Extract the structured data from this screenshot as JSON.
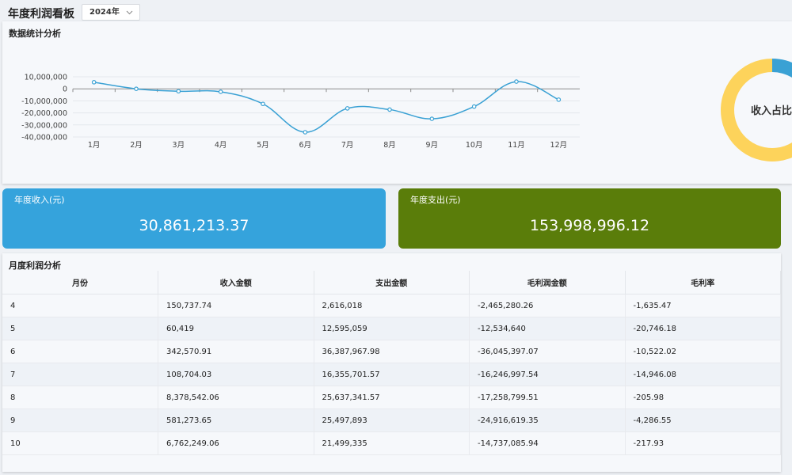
{
  "header": {
    "title": "年度利润看板",
    "year_select": "2024年"
  },
  "stats_panel": {
    "title": "数据统计分析",
    "donut_label": "收入占比"
  },
  "chart_data": {
    "type": "line",
    "categories": [
      "1月",
      "2月",
      "3月",
      "4月",
      "5月",
      "6月",
      "7月",
      "8月",
      "9月",
      "10月",
      "11月",
      "12月"
    ],
    "values": [
      5500000,
      0,
      -2000000,
      -2465280.26,
      -12534640,
      -36045397.07,
      -16246997.54,
      -17258799.51,
      -24916619.35,
      -14737085.94,
      6000000,
      -9000000
    ],
    "color": "#3aa1d4",
    "ylim": [
      -40000000,
      10000000
    ],
    "yticks": [
      {
        "value": 10000000,
        "label": "10,000,000"
      },
      0,
      {
        "value": -10000000,
        "label": "-10,000,000"
      },
      {
        "value": -20000000,
        "label": "-20,000,000"
      },
      {
        "value": -30000000,
        "label": "-30,000,000"
      },
      {
        "value": -40000000,
        "label": "-40,000,000"
      }
    ],
    "grid": true
  },
  "donut": {
    "values": [
      17,
      83
    ],
    "colors": [
      "#3aa1d4",
      "#fdd35b"
    ]
  },
  "cards": [
    {
      "title": "年度收入(元)",
      "value": "30,861,213.37",
      "color": "#35a3dc"
    },
    {
      "title": "年度支出(元)",
      "value": "153,998,996.12",
      "color": "#5a7d0a"
    }
  ],
  "table": {
    "title": "月度利润分析",
    "columns": [
      "月份",
      "收入金额",
      "支出金额",
      "毛利润金额",
      "毛利率"
    ],
    "rows": [
      [
        "4",
        "150,737.74",
        "2,616,018",
        "-2,465,280.26",
        "-1,635.47"
      ],
      [
        "5",
        "60,419",
        "12,595,059",
        "-12,534,640",
        "-20,746.18"
      ],
      [
        "6",
        "342,570.91",
        "36,387,967.98",
        "-36,045,397.07",
        "-10,522.02"
      ],
      [
        "7",
        "108,704.03",
        "16,355,701.57",
        "-16,246,997.54",
        "-14,946.08"
      ],
      [
        "8",
        "8,378,542.06",
        "25,637,341.57",
        "-17,258,799.51",
        "-205.98"
      ],
      [
        "9",
        "581,273.65",
        "25,497,893",
        "-24,916,619.35",
        "-4,286.55"
      ],
      [
        "10",
        "6,762,249.06",
        "21,499,335",
        "-14,737,085.94",
        "-217.93"
      ]
    ]
  }
}
